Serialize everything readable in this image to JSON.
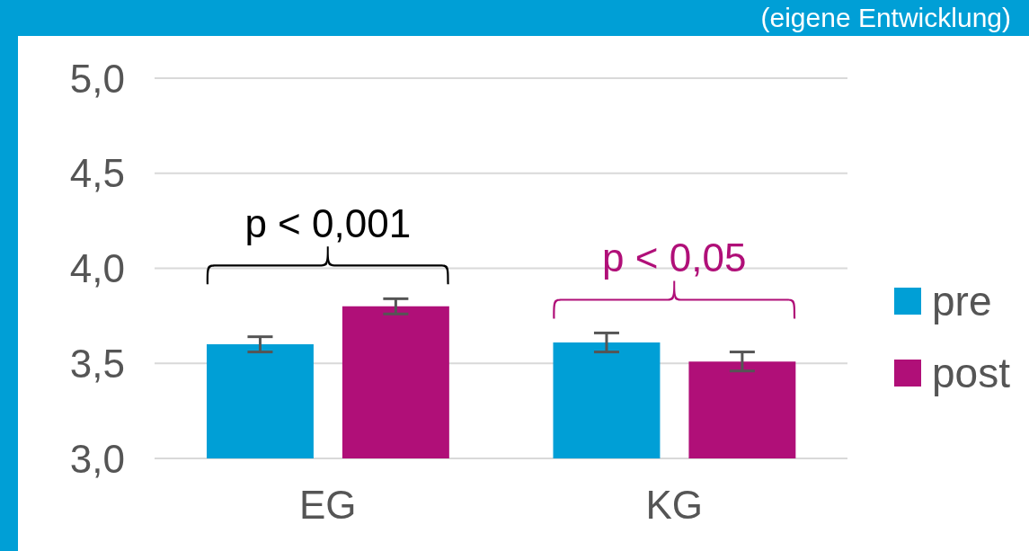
{
  "chart_data": {
    "type": "bar",
    "title": "(eigene Entwicklung)",
    "categories": [
      "EG",
      "KG"
    ],
    "series": [
      {
        "name": "pre",
        "color": "#009fd6",
        "values": [
          3.6,
          3.61
        ],
        "errors": [
          0.04,
          0.05
        ]
      },
      {
        "name": "post",
        "color": "#b00f78",
        "values": [
          3.8,
          3.51
        ],
        "errors": [
          0.04,
          0.05
        ]
      }
    ],
    "ylim": [
      3.0,
      5.0
    ],
    "yticks": [
      {
        "value": 3.0,
        "label": "3,0"
      },
      {
        "value": 3.5,
        "label": "3,5"
      },
      {
        "value": 4.0,
        "label": "4,0"
      },
      {
        "value": 4.5,
        "label": "4,5"
      },
      {
        "value": 5.0,
        "label": "5,0"
      }
    ],
    "grid": "y",
    "legend": "right",
    "annotations": [
      "p < 0,001",
      "p < 0,05"
    ]
  }
}
